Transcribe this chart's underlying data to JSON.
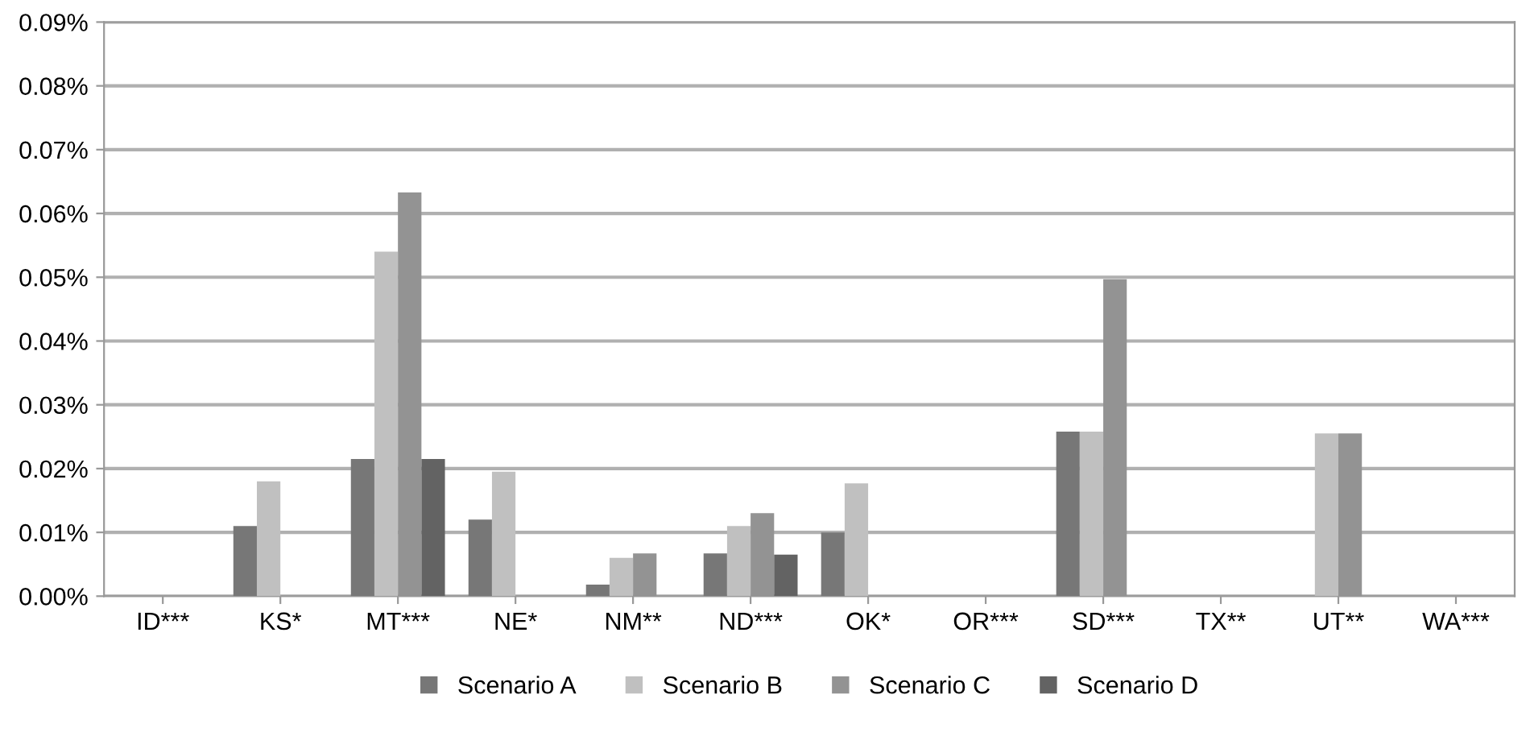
{
  "chart_data": {
    "type": "bar",
    "categories": [
      "ID***",
      "KS*",
      "MT***",
      "NE*",
      "NM**",
      "ND***",
      "OK*",
      "OR***",
      "SD***",
      "TX**",
      "UT**",
      "WA***"
    ],
    "series": [
      {
        "name": "Scenario A",
        "color": "#777777",
        "values": [
          0,
          0.011,
          0.0215,
          0.012,
          0.0018,
          0.0067,
          0.01,
          0,
          0.0258,
          0,
          null,
          0
        ]
      },
      {
        "name": "Scenario B",
        "color": "#c0c0c0",
        "values": [
          0,
          0.018,
          0.054,
          0.0195,
          0.006,
          0.011,
          0.0177,
          0,
          0.0258,
          null,
          0.0255,
          0
        ]
      },
      {
        "name": "Scenario C",
        "color": "#939393",
        "values": [
          0,
          0,
          0.0633,
          0,
          0.0067,
          0.013,
          0,
          0,
          0.0497,
          null,
          0.0255,
          0
        ]
      },
      {
        "name": "Scenario D",
        "color": "#636363",
        "values": [
          0,
          0,
          0.0215,
          0,
          0,
          0.0065,
          0,
          0,
          0,
          0,
          0,
          0
        ]
      }
    ],
    "ylim": [
      0,
      0.09
    ],
    "yticks": [
      {
        "value": 0,
        "label": "0.00%"
      },
      {
        "value": 0.01,
        "label": "0.01%"
      },
      {
        "value": 0.02,
        "label": "0.02%"
      },
      {
        "value": 0.03,
        "label": "0.03%"
      },
      {
        "value": 0.04,
        "label": "0.04%"
      },
      {
        "value": 0.05,
        "label": "0.05%"
      },
      {
        "value": 0.06,
        "label": "0.06%"
      },
      {
        "value": 0.07,
        "label": "0.07%"
      },
      {
        "value": 0.08,
        "label": "0.08%"
      },
      {
        "value": 0.09,
        "label": "0.09%"
      }
    ],
    "grid": "y",
    "legend": "bottom"
  }
}
